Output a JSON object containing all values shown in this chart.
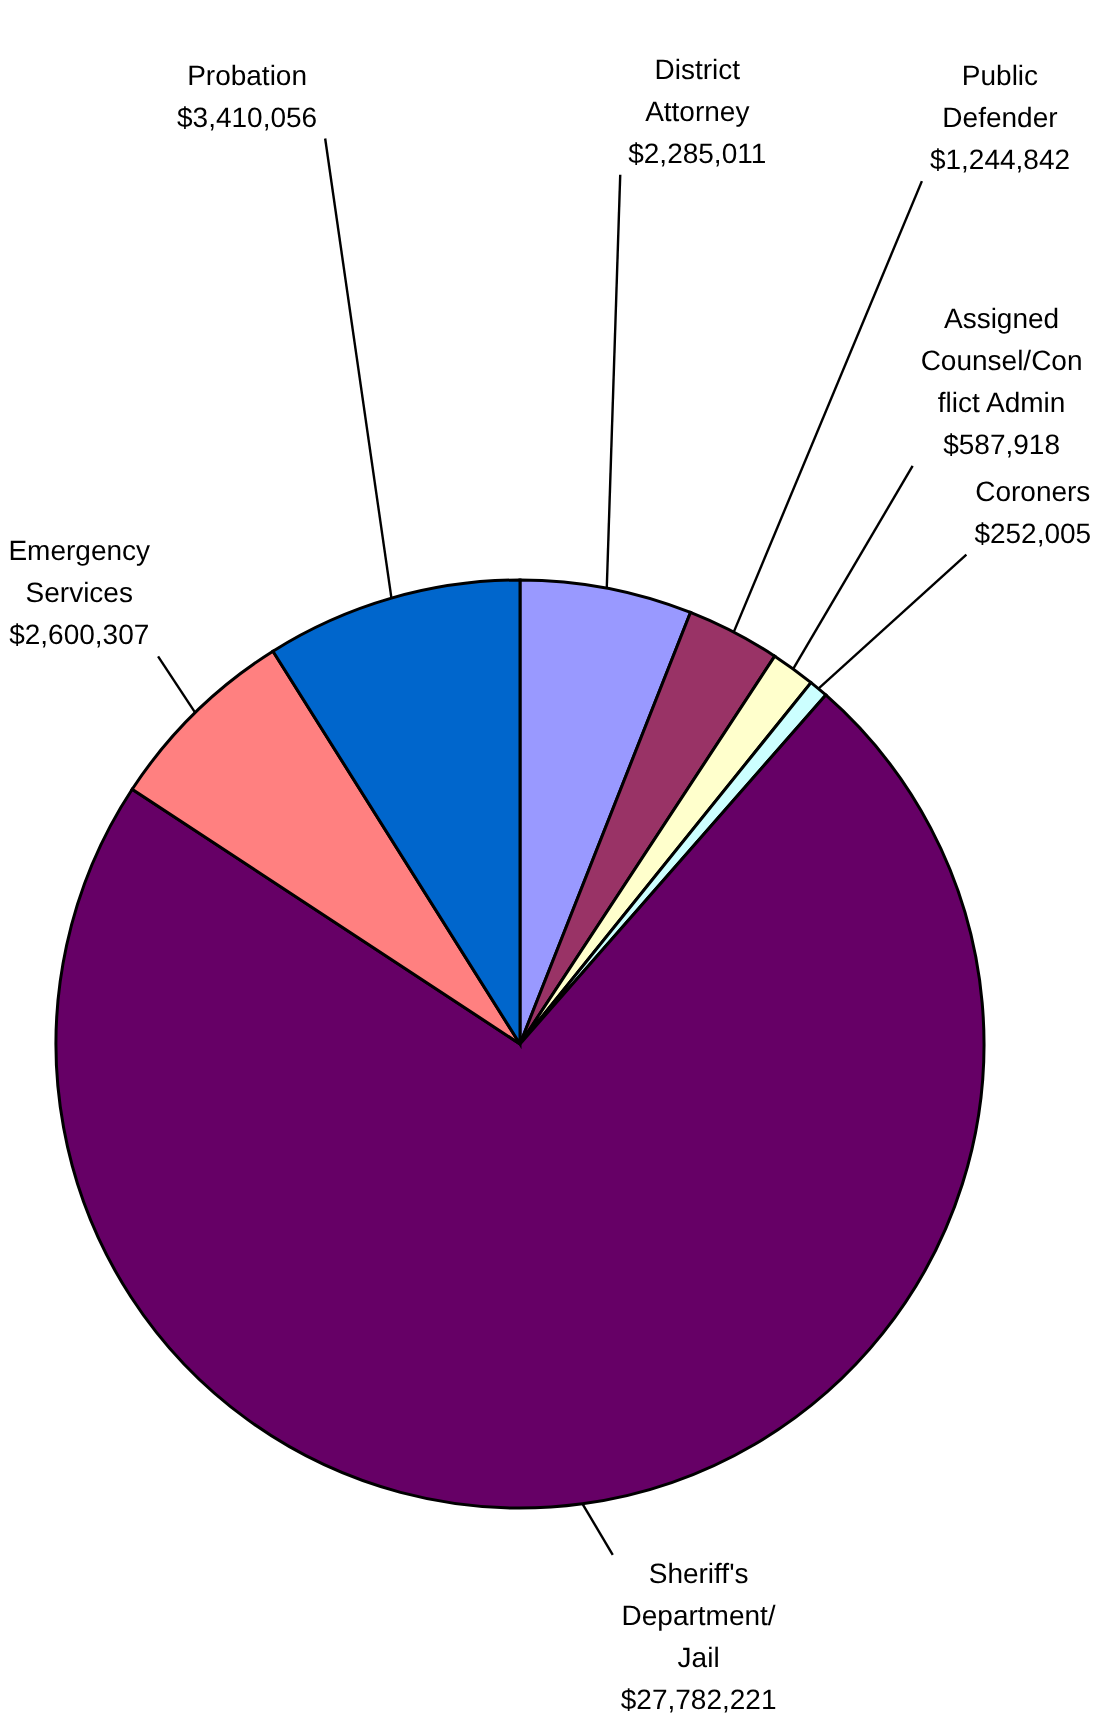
{
  "chart_data": {
    "type": "pie",
    "categories": [
      "District Attorney",
      "Public Defender",
      "Assigned Counsel/Conflict Admin",
      "Coroners",
      "Sheriff's Department/Jail",
      "Emergency Services",
      "Probation"
    ],
    "values": [
      2285011,
      1244842,
      587918,
      252005,
      27782221,
      2600307,
      3410056
    ],
    "colors": [
      "#9999ff",
      "#993366",
      "#ffffcc",
      "#ccffff",
      "#660066",
      "#ff8080",
      "#0066cc"
    ],
    "value_labels": [
      "$2,285,011",
      "$1,244,842",
      "$587,918",
      "$252,005",
      "$27,782,221",
      "$2,600,307",
      "$3,410,056"
    ]
  }
}
